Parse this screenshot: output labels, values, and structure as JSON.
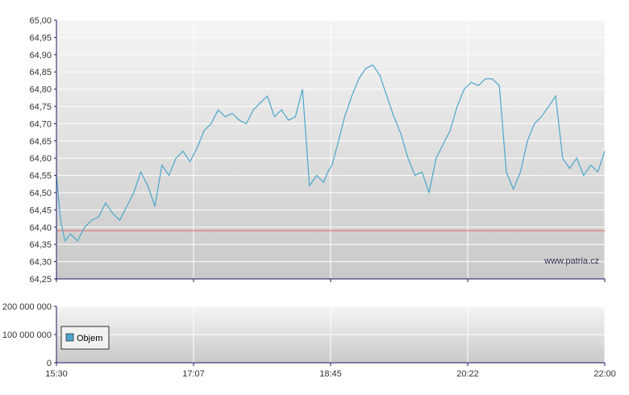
{
  "chart_data": [
    {
      "type": "line",
      "title": "",
      "xlabel": "",
      "ylabel": "",
      "ylim": [
        64.25,
        65.0
      ],
      "yticks": [
        "65,00",
        "64,95",
        "64,90",
        "64,85",
        "64,80",
        "64,75",
        "64,70",
        "64,65",
        "64,60",
        "64,55",
        "64,50",
        "64,45",
        "64,40",
        "64,35",
        "64,30",
        "64,25"
      ],
      "xticks": [
        "15:30",
        "17:07",
        "18:45",
        "20:22",
        "22:00"
      ],
      "xlim": [
        "15:30",
        "22:00"
      ],
      "grid": true,
      "reference_line": {
        "value": 64.39,
        "color": "#e06666"
      },
      "series": [
        {
          "color": "#4da6cc",
          "x": [
            "15:30",
            "15:33",
            "15:36",
            "15:40",
            "15:45",
            "15:50",
            "15:55",
            "16:00",
            "16:05",
            "16:10",
            "16:15",
            "16:20",
            "16:25",
            "16:30",
            "16:35",
            "16:40",
            "16:45",
            "16:50",
            "16:55",
            "17:00",
            "17:05",
            "17:10",
            "17:15",
            "17:20",
            "17:25",
            "17:30",
            "17:35",
            "17:40",
            "17:45",
            "17:50",
            "17:55",
            "18:00",
            "18:05",
            "18:10",
            "18:15",
            "18:20",
            "18:25",
            "18:30",
            "18:35",
            "18:40",
            "18:43",
            "18:46",
            "18:50",
            "18:55",
            "19:00",
            "19:05",
            "19:10",
            "19:15",
            "19:20",
            "19:25",
            "19:30",
            "19:35",
            "19:40",
            "19:45",
            "19:50",
            "19:55",
            "20:00",
            "20:05",
            "20:10",
            "20:15",
            "20:20",
            "20:25",
            "20:30",
            "20:35",
            "20:40",
            "20:45",
            "20:50",
            "20:55",
            "21:00",
            "21:05",
            "21:10",
            "21:15",
            "21:20",
            "21:25",
            "21:30",
            "21:35",
            "21:40",
            "21:45",
            "21:50",
            "21:55",
            "22:00"
          ],
          "y": [
            64.55,
            64.42,
            64.36,
            64.38,
            64.36,
            64.4,
            64.42,
            64.43,
            64.47,
            64.44,
            64.42,
            64.46,
            64.5,
            64.56,
            64.52,
            64.46,
            64.58,
            64.55,
            64.6,
            64.62,
            64.59,
            64.63,
            64.68,
            64.7,
            64.74,
            64.72,
            64.73,
            64.71,
            64.7,
            64.74,
            64.76,
            64.78,
            64.72,
            64.74,
            64.71,
            64.72,
            64.8,
            64.52,
            64.55,
            64.53,
            64.56,
            64.58,
            64.64,
            64.72,
            64.78,
            64.83,
            64.86,
            64.87,
            64.84,
            64.78,
            64.72,
            64.67,
            64.6,
            64.55,
            64.56,
            64.5,
            64.6,
            64.64,
            64.68,
            64.75,
            64.8,
            64.82,
            64.81,
            64.83,
            64.83,
            64.81,
            64.56,
            64.51,
            64.56,
            64.65,
            64.7,
            64.72,
            64.75,
            64.78,
            64.6,
            64.57,
            64.6,
            64.55,
            64.58,
            64.56,
            64.62
          ]
        }
      ]
    },
    {
      "type": "bar",
      "title": "",
      "xlabel": "",
      "ylabel": "",
      "ylim": [
        0,
        200000000
      ],
      "yticks": [
        "200 000 000",
        "100 000 000",
        "0"
      ],
      "xticks": [
        "15:30",
        "17:07",
        "18:45",
        "20:22",
        "22:00"
      ],
      "legend": {
        "label": "Objem",
        "color": "#4da6cc",
        "position": "bottom-left"
      },
      "series": [
        {
          "name": "Objem",
          "values": []
        }
      ]
    }
  ],
  "watermark": "www.patria.cz",
  "colors": {
    "line": "#4da6cc",
    "reference": "#e06666",
    "grid": "#ffffff",
    "plot_bg_top": "#f5f5f5",
    "plot_bg_bottom": "#c9c9c9",
    "axis": "#1a1a66"
  }
}
